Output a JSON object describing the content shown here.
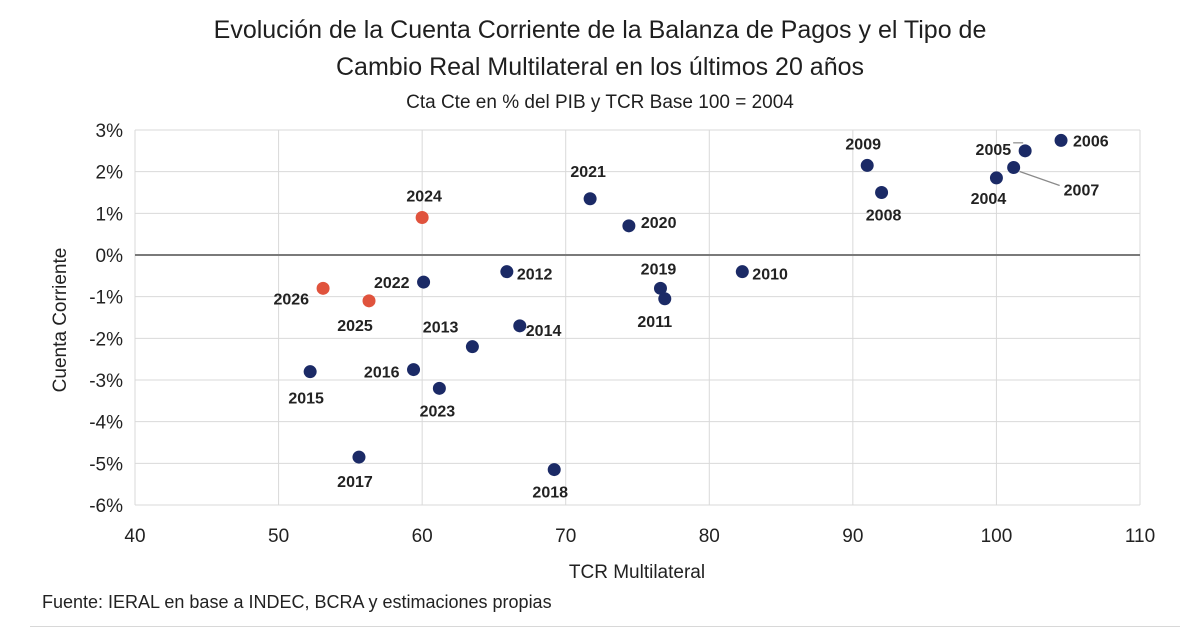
{
  "chart_data": {
    "type": "scatter",
    "title_line1": "Evolución de la Cuenta Corriente de la Balanza de Pagos y el Tipo de",
    "title_line2": "Cambio Real Multilateral en los últimos 20 años",
    "subtitle": "Cta Cte en % del PIB y TCR Base 100 = 2004",
    "xlabel": "TCR Multilateral",
    "ylabel": "Cuenta Corriente",
    "xlim": [
      40,
      110
    ],
    "ylim": [
      -6,
      3
    ],
    "xticks": [
      40,
      50,
      60,
      70,
      80,
      90,
      100,
      110
    ],
    "yticks": [
      3,
      2,
      1,
      0,
      -1,
      -2,
      -3,
      -4,
      -5,
      -6
    ],
    "ytick_labels": [
      "3%",
      "2%",
      "1%",
      "0%",
      "-1%",
      "-2%",
      "-3%",
      "-4%",
      "-5%",
      "-6%"
    ],
    "grid": "horizontal",
    "colors": {
      "historical": "#1b2a66",
      "estimated": "#e0533d"
    },
    "points": [
      {
        "label": "2004",
        "x": 100.0,
        "y": 1.85,
        "group": "historical"
      },
      {
        "label": "2005",
        "x": 102.0,
        "y": 2.5,
        "group": "historical"
      },
      {
        "label": "2006",
        "x": 104.5,
        "y": 2.75,
        "group": "historical"
      },
      {
        "label": "2007",
        "x": 101.2,
        "y": 2.1,
        "group": "historical"
      },
      {
        "label": "2008",
        "x": 92.0,
        "y": 1.5,
        "group": "historical"
      },
      {
        "label": "2009",
        "x": 91.0,
        "y": 2.15,
        "group": "historical"
      },
      {
        "label": "2010",
        "x": 82.3,
        "y": -0.4,
        "group": "historical"
      },
      {
        "label": "2011",
        "x": 76.9,
        "y": -1.05,
        "group": "historical"
      },
      {
        "label": "2012",
        "x": 65.9,
        "y": -0.4,
        "group": "historical"
      },
      {
        "label": "2013",
        "x": 63.5,
        "y": -2.2,
        "group": "historical"
      },
      {
        "label": "2014",
        "x": 66.8,
        "y": -1.7,
        "group": "historical"
      },
      {
        "label": "2015",
        "x": 52.2,
        "y": -2.8,
        "group": "historical"
      },
      {
        "label": "2016",
        "x": 59.4,
        "y": -2.75,
        "group": "historical"
      },
      {
        "label": "2017",
        "x": 55.6,
        "y": -4.85,
        "group": "historical"
      },
      {
        "label": "2018",
        "x": 69.2,
        "y": -5.15,
        "group": "historical"
      },
      {
        "label": "2019",
        "x": 76.6,
        "y": -0.8,
        "group": "historical"
      },
      {
        "label": "2020",
        "x": 74.4,
        "y": 0.7,
        "group": "historical"
      },
      {
        "label": "2021",
        "x": 71.7,
        "y": 1.35,
        "group": "historical"
      },
      {
        "label": "2022",
        "x": 60.1,
        "y": -0.65,
        "group": "historical"
      },
      {
        "label": "2023",
        "x": 61.2,
        "y": -3.2,
        "group": "historical"
      },
      {
        "label": "2024",
        "x": 60.0,
        "y": 0.9,
        "group": "estimated"
      },
      {
        "label": "2025",
        "x": 56.3,
        "y": -1.1,
        "group": "estimated"
      },
      {
        "label": "2026",
        "x": 53.1,
        "y": -0.8,
        "group": "estimated"
      }
    ]
  },
  "source_note": "Fuente: IERAL en base a INDEC, BCRA y estimaciones propias"
}
